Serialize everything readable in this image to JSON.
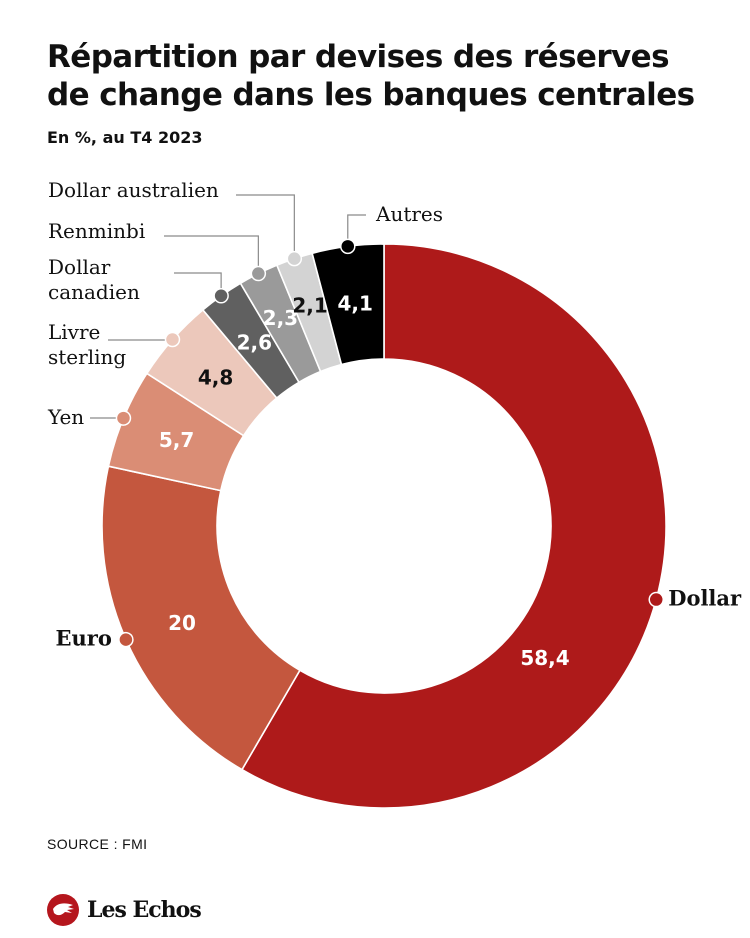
{
  "header": {
    "title_line1": "Répartition par devises des réserves",
    "title_line2": "de change dans les banques centrales",
    "subtitle": "En %, au T4 2023"
  },
  "chart_data": {
    "type": "pie",
    "style": "donut",
    "categories": [
      "Dollar",
      "Euro",
      "Yen",
      "Livre sterling",
      "Dollar canadien",
      "Renminbi",
      "Dollar australien",
      "Autres"
    ],
    "values": [
      58.4,
      20,
      5.7,
      4.8,
      2.6,
      2.3,
      2.1,
      4.1
    ],
    "value_labels": [
      "58,4",
      "20",
      "5,7",
      "4,8",
      "2,6",
      "2,3",
      "2,1",
      "4,1"
    ],
    "category_labels": [
      [
        "Dollar"
      ],
      [
        "Euro"
      ],
      [
        "Yen"
      ],
      [
        "Livre",
        "sterling"
      ],
      [
        "Dollar",
        "canadien"
      ],
      [
        "Renminbi"
      ],
      [
        "Dollar australien"
      ],
      [
        "Autres"
      ]
    ],
    "colors": [
      "#ae1a1a",
      "#c4573e",
      "#da8d75",
      "#ecc8bb",
      "#606060",
      "#9a9a9a",
      "#d3d3d3",
      "#000000"
    ],
    "value_label_colors": [
      "#ffffff",
      "#ffffff",
      "#ffffff",
      "#111111",
      "#ffffff",
      "#ffffff",
      "#111111",
      "#ffffff"
    ],
    "legend": "none"
  },
  "footer": {
    "source": "SOURCE : FMI",
    "brand": "Les Echos"
  }
}
